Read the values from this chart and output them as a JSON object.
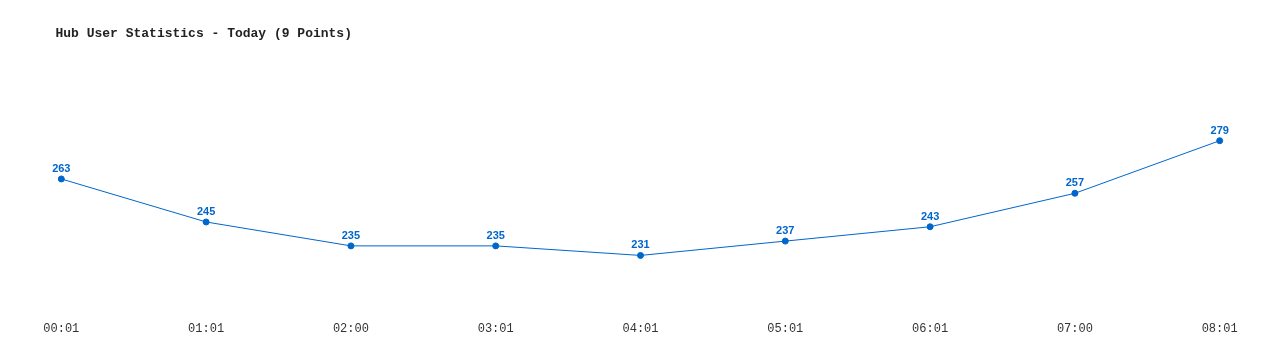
{
  "chart_data": {
    "type": "line",
    "title": "Hub User Statistics - Today (9 Points)",
    "categories": [
      "00:01",
      "01:01",
      "02:00",
      "03:01",
      "04:01",
      "05:01",
      "06:01",
      "07:00",
      "08:01"
    ],
    "series": [
      {
        "color": "#0066cc",
        "values": [
          263,
          245,
          235,
          235,
          231,
          237,
          243,
          257,
          279
        ]
      }
    ],
    "data_labels": true,
    "marker": "circle",
    "grid": false,
    "tick_labels": "x"
  }
}
